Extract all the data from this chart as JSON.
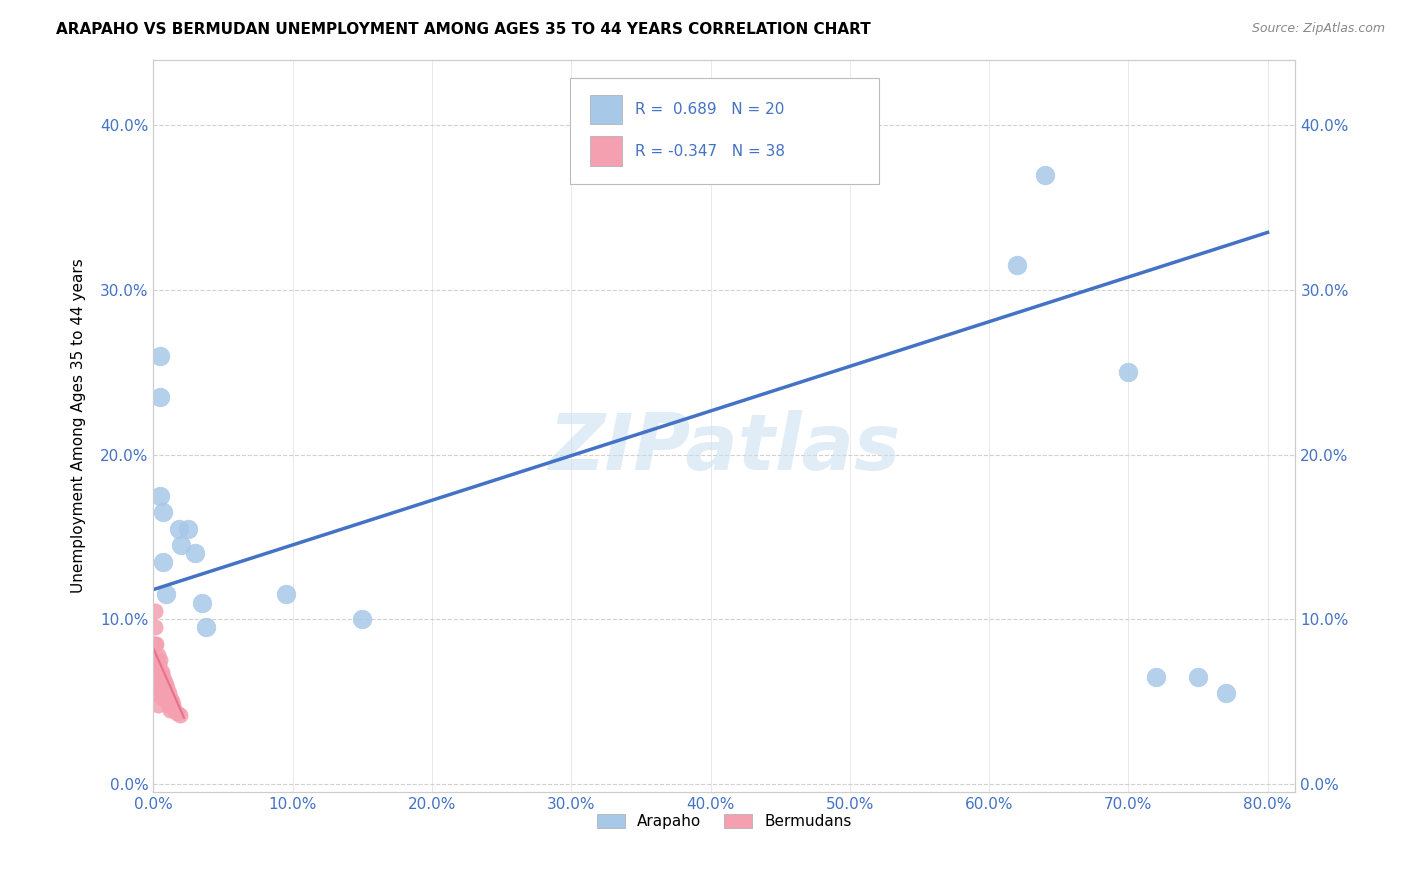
{
  "title": "ARAPAHO VS BERMUDAN UNEMPLOYMENT AMONG AGES 35 TO 44 YEARS CORRELATION CHART",
  "source": "Source: ZipAtlas.com",
  "ylabel": "Unemployment Among Ages 35 to 44 years",
  "xlim": [
    0.0,
    0.82
  ],
  "ylim": [
    -0.005,
    0.44
  ],
  "arapaho_color": "#a8c8e8",
  "bermuda_color": "#f4a0b0",
  "arapaho_line_color": "#4472c4",
  "bermuda_line_color": "#e05070",
  "watermark": "ZIPatlas",
  "grid_color": "#cccccc",
  "background_color": "#ffffff",
  "tick_color": "#4472c4",
  "arapaho_x": [
    0.005,
    0.005,
    0.005,
    0.007,
    0.007,
    0.009,
    0.018,
    0.02,
    0.025,
    0.03,
    0.035,
    0.038,
    0.095,
    0.15,
    0.62,
    0.64,
    0.7,
    0.72,
    0.75,
    0.77
  ],
  "arapaho_y": [
    0.26,
    0.235,
    0.175,
    0.165,
    0.135,
    0.115,
    0.155,
    0.145,
    0.155,
    0.14,
    0.11,
    0.095,
    0.115,
    0.1,
    0.315,
    0.37,
    0.25,
    0.065,
    0.065,
    0.055
  ],
  "bermuda_x": [
    0.001,
    0.001,
    0.001,
    0.001,
    0.001,
    0.002,
    0.002,
    0.002,
    0.002,
    0.003,
    0.003,
    0.003,
    0.003,
    0.004,
    0.004,
    0.005,
    0.005,
    0.005,
    0.006,
    0.006,
    0.006,
    0.007,
    0.007,
    0.008,
    0.008,
    0.009,
    0.009,
    0.01,
    0.01,
    0.011,
    0.011,
    0.012,
    0.012,
    0.013,
    0.014,
    0.015,
    0.017,
    0.019
  ],
  "bermuda_y": [
    0.105,
    0.095,
    0.085,
    0.075,
    0.065,
    0.085,
    0.075,
    0.065,
    0.055,
    0.078,
    0.068,
    0.058,
    0.048,
    0.072,
    0.062,
    0.075,
    0.068,
    0.058,
    0.068,
    0.06,
    0.052,
    0.065,
    0.058,
    0.062,
    0.054,
    0.06,
    0.052,
    0.058,
    0.05,
    0.055,
    0.047,
    0.052,
    0.045,
    0.05,
    0.048,
    0.045,
    0.043,
    0.042
  ],
  "arapaho_line_start_x": 0.0,
  "arapaho_line_start_y": 0.118,
  "arapaho_line_end_x": 0.8,
  "arapaho_line_end_y": 0.335,
  "bermuda_line_start_x": 0.0,
  "bermuda_line_start_y": 0.082,
  "bermuda_line_end_x": 0.022,
  "bermuda_line_end_y": 0.04
}
